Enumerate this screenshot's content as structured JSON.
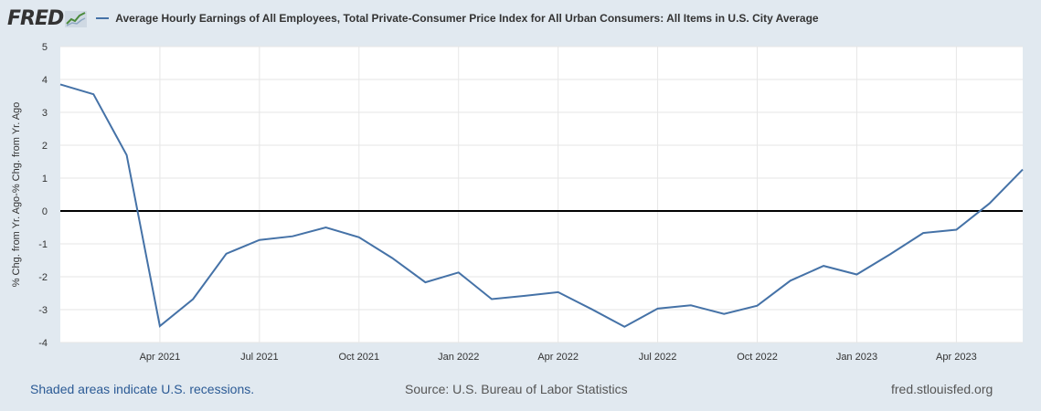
{
  "header": {
    "logo_text": "FRED",
    "legend_label": "Average Hourly Earnings of All Employees, Total Private-Consumer Price Index for All Urban Consumers: All Items in U.S. City Average"
  },
  "footer": {
    "recessions": "Shaded areas indicate U.S. recessions.",
    "source": "Source: U.S. Bureau of Labor Statistics",
    "site": "fred.stlouisfed.org"
  },
  "colors": {
    "line": "#4572a7",
    "plot_bg": "#ffffff",
    "page_bg": "#e1e9f0",
    "zero_line": "#000000"
  },
  "chart_data": {
    "type": "line",
    "title": "",
    "ylabel": "% Chg. from Yr. Ago-% Chg. from Yr. Ago",
    "ylim": [
      -4,
      5
    ],
    "yticks": [
      5,
      4,
      3,
      2,
      1,
      0,
      -1,
      -2,
      -3,
      -4
    ],
    "xlim": [
      "2021-01",
      "2023-06"
    ],
    "xticks": [
      {
        "x": "2021-04",
        "label": "Apr 2021"
      },
      {
        "x": "2021-07",
        "label": "Jul 2021"
      },
      {
        "x": "2021-10",
        "label": "Oct 2021"
      },
      {
        "x": "2022-01",
        "label": "Jan 2022"
      },
      {
        "x": "2022-04",
        "label": "Apr 2022"
      },
      {
        "x": "2022-07",
        "label": "Jul 2022"
      },
      {
        "x": "2022-10",
        "label": "Oct 2022"
      },
      {
        "x": "2023-01",
        "label": "Jan 2023"
      },
      {
        "x": "2023-04",
        "label": "Apr 2023"
      }
    ],
    "grid": true,
    "series": [
      {
        "name": "Average Hourly Earnings of All Employees, Total Private-Consumer Price Index for All Urban Consumers: All Items in U.S. City Average",
        "points": [
          {
            "x": "2021-01",
            "y": 3.85
          },
          {
            "x": "2021-02",
            "y": 3.55
          },
          {
            "x": "2021-03",
            "y": 1.7
          },
          {
            "x": "2021-04",
            "y": -3.5
          },
          {
            "x": "2021-05",
            "y": -2.68
          },
          {
            "x": "2021-06",
            "y": -1.3
          },
          {
            "x": "2021-07",
            "y": -0.88
          },
          {
            "x": "2021-08",
            "y": -0.77
          },
          {
            "x": "2021-09",
            "y": -0.5
          },
          {
            "x": "2021-10",
            "y": -0.8
          },
          {
            "x": "2021-11",
            "y": -1.43
          },
          {
            "x": "2021-12",
            "y": -2.17
          },
          {
            "x": "2022-01",
            "y": -1.87
          },
          {
            "x": "2022-02",
            "y": -2.68
          },
          {
            "x": "2022-03",
            "y": -2.58
          },
          {
            "x": "2022-04",
            "y": -2.47
          },
          {
            "x": "2022-05",
            "y": -2.98
          },
          {
            "x": "2022-06",
            "y": -3.52
          },
          {
            "x": "2022-07",
            "y": -2.97
          },
          {
            "x": "2022-08",
            "y": -2.87
          },
          {
            "x": "2022-09",
            "y": -3.13
          },
          {
            "x": "2022-10",
            "y": -2.88
          },
          {
            "x": "2022-11",
            "y": -2.12
          },
          {
            "x": "2022-12",
            "y": -1.67
          },
          {
            "x": "2023-01",
            "y": -1.93
          },
          {
            "x": "2023-02",
            "y": -1.32
          },
          {
            "x": "2023-03",
            "y": -0.67
          },
          {
            "x": "2023-04",
            "y": -0.57
          },
          {
            "x": "2023-05",
            "y": 0.23
          },
          {
            "x": "2023-06",
            "y": 1.26
          }
        ]
      }
    ]
  }
}
